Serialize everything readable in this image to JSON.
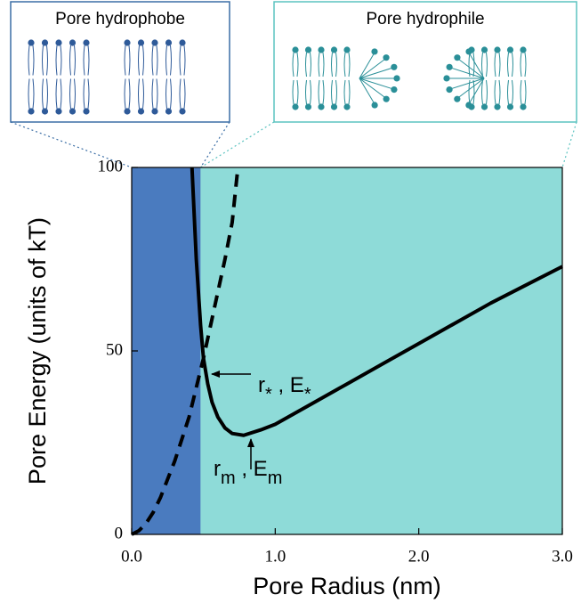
{
  "chart_data": {
    "type": "line",
    "insets": [
      {
        "title": "Pore hydrophobe",
        "color": "#2e5a99",
        "border": "#3b6ea5"
      },
      {
        "title": "Pore hydrophile",
        "color": "#2a8f98",
        "border": "#5cc3c0"
      }
    ],
    "x_label": "Pore Radius (nm)",
    "y_label": "Pore Energy (units of kT)",
    "xlim": [
      0,
      3
    ],
    "ylim": [
      0,
      100
    ],
    "xticks": [
      {
        "value": 0,
        "label": "0.0"
      },
      {
        "value": 1,
        "label": "1.0"
      },
      {
        "value": 2,
        "label": "2.0"
      },
      {
        "value": 3,
        "label": "3.0"
      }
    ],
    "yticks": [
      0,
      50,
      100
    ],
    "shaded_regions": [
      {
        "x": [
          0,
          0.48
        ],
        "color": "#4a7bbf"
      },
      {
        "x": [
          0.48,
          3
        ],
        "color": "#8edbd8"
      }
    ],
    "series": [
      {
        "color": "#000000",
        "style": "solid",
        "x": [
          0.42,
          0.45,
          0.48,
          0.5,
          0.53,
          0.56,
          0.6,
          0.65,
          0.7,
          0.78,
          0.9,
          1.0,
          1.25,
          1.5,
          1.75,
          2.0,
          2.25,
          2.5,
          2.75,
          3.0
        ],
        "values": [
          100,
          75,
          57,
          48,
          41,
          36,
          32,
          29,
          27.5,
          27,
          28.5,
          30,
          35.5,
          41,
          46.5,
          52,
          57.5,
          63,
          68,
          73
        ]
      },
      {
        "color": "#000000",
        "style": "dashed",
        "x": [
          0,
          0.05,
          0.1,
          0.15,
          0.2,
          0.25,
          0.3,
          0.35,
          0.4,
          0.45,
          0.5,
          0.55,
          0.6,
          0.65,
          0.7,
          0.74
        ],
        "values": [
          0,
          1,
          3,
          6,
          10,
          15,
          20,
          26,
          32,
          40,
          48,
          57,
          66,
          75,
          85,
          100
        ]
      }
    ],
    "annotations": [
      {
        "parts": [
          {
            "text": "r"
          },
          {
            "text": "*",
            "sub": true
          },
          {
            "text": " , E"
          },
          {
            "text": "*",
            "sub": true
          }
        ]
      },
      {
        "parts": [
          {
            "text": "r"
          },
          {
            "text": "m",
            "sub": true
          },
          {
            "text": " , E"
          },
          {
            "text": "m",
            "sub": true
          }
        ]
      }
    ]
  }
}
